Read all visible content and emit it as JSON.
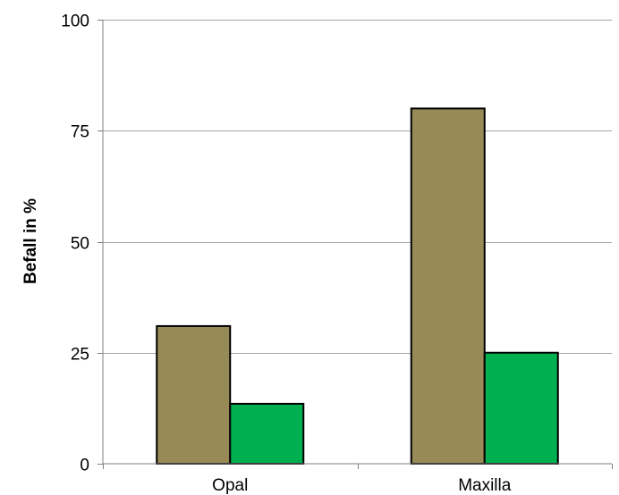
{
  "chart_data": {
    "type": "bar",
    "title": "",
    "xlabel": "",
    "ylabel": "Befall in %",
    "categories": [
      "Opal",
      "Maxilla"
    ],
    "series": [
      {
        "values": [
          31,
          80
        ],
        "color": "#978A56"
      },
      {
        "values": [
          13.5,
          25
        ],
        "color": "#00B050"
      }
    ],
    "ylim": [
      0,
      100
    ],
    "yticks": [
      0,
      25,
      50,
      75,
      100
    ],
    "grid": true,
    "legend": "none"
  }
}
